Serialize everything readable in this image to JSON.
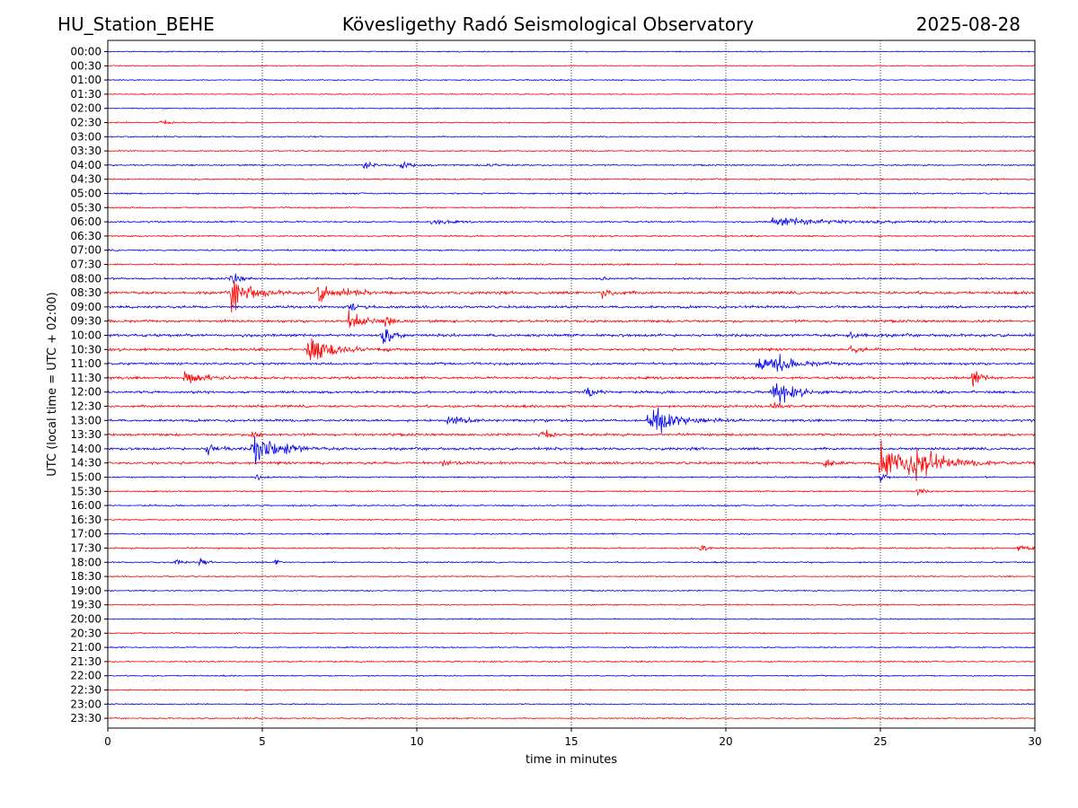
{
  "header": {
    "station": "HU_Station_BEHE",
    "observatory": "Kövesligethy Radó Seismological Observatory",
    "date": "2025-08-28"
  },
  "chart_data": {
    "type": "line",
    "chart_kind": "helicorder",
    "xlabel": "time in minutes",
    "ylabel": "UTC (local time = UTC + 02:00)",
    "xlim": [
      0,
      30
    ],
    "x_ticks": [
      0,
      5,
      10,
      15,
      20,
      25,
      30
    ],
    "grid": "vertical dotted at x ticks",
    "colors": {
      "blue": "#0000ee",
      "red": "#ff0000"
    },
    "color_pattern": "alternating blue / red, starting with blue at 00:00",
    "row_labels": [
      "00:00",
      "00:30",
      "01:00",
      "01:30",
      "02:00",
      "02:30",
      "03:00",
      "03:30",
      "04:00",
      "04:30",
      "05:00",
      "05:30",
      "06:00",
      "06:30",
      "07:00",
      "07:30",
      "08:00",
      "08:30",
      "09:00",
      "09:30",
      "10:00",
      "10:30",
      "11:00",
      "11:30",
      "12:00",
      "12:30",
      "13:00",
      "13:30",
      "14:00",
      "14:30",
      "15:00",
      "15:30",
      "16:00",
      "16:30",
      "17:00",
      "17:30",
      "18:00",
      "18:30",
      "19:00",
      "19:30",
      "20:00",
      "20:30",
      "21:00",
      "21:30",
      "22:00",
      "22:30",
      "23:00",
      "23:30"
    ],
    "row_noise": [
      0.22,
      0.2,
      0.22,
      0.2,
      0.22,
      0.25,
      0.25,
      0.25,
      0.28,
      0.28,
      0.3,
      0.3,
      0.32,
      0.3,
      0.32,
      0.32,
      0.35,
      0.55,
      0.5,
      0.5,
      0.55,
      0.5,
      0.45,
      0.5,
      0.5,
      0.48,
      0.48,
      0.5,
      0.5,
      0.5,
      0.3,
      0.28,
      0.28,
      0.28,
      0.28,
      0.3,
      0.28,
      0.25,
      0.25,
      0.25,
      0.25,
      0.25,
      0.25,
      0.28,
      0.25,
      0.25,
      0.25,
      0.25
    ],
    "events": [
      {
        "row": 5,
        "minute": 1.7,
        "amplitude": 0.6,
        "duration": 0.5
      },
      {
        "row": 8,
        "minute": 8.3,
        "amplitude": 0.9,
        "duration": 0.6
      },
      {
        "row": 8,
        "minute": 9.5,
        "amplitude": 0.5,
        "duration": 1.0
      },
      {
        "row": 8,
        "minute": 12.2,
        "amplitude": 0.35,
        "duration": 1.0
      },
      {
        "row": 12,
        "minute": 10.5,
        "amplitude": 0.5,
        "duration": 1.0
      },
      {
        "row": 12,
        "minute": 21.5,
        "amplitude": 0.8,
        "duration": 4.5
      },
      {
        "row": 16,
        "minute": 4.0,
        "amplitude": 1.5,
        "duration": 0.5
      },
      {
        "row": 16,
        "minute": 16.0,
        "amplitude": 0.5,
        "duration": 0.4
      },
      {
        "row": 17,
        "minute": 4.0,
        "amplitude": 3.5,
        "duration": 1.2
      },
      {
        "row": 17,
        "minute": 6.8,
        "amplitude": 1.6,
        "duration": 1.5
      },
      {
        "row": 17,
        "minute": 16.0,
        "amplitude": 1.0,
        "duration": 0.8
      },
      {
        "row": 18,
        "minute": 7.8,
        "amplitude": 1.0,
        "duration": 0.5
      },
      {
        "row": 19,
        "minute": 7.8,
        "amplitude": 2.0,
        "duration": 0.8
      },
      {
        "row": 19,
        "minute": 9.0,
        "amplitude": 1.5,
        "duration": 0.5
      },
      {
        "row": 20,
        "minute": 8.9,
        "amplitude": 2.0,
        "duration": 0.6
      },
      {
        "row": 20,
        "minute": 24.0,
        "amplitude": 0.6,
        "duration": 1.0
      },
      {
        "row": 21,
        "minute": 6.5,
        "amplitude": 2.6,
        "duration": 1.8
      },
      {
        "row": 21,
        "minute": 24.0,
        "amplitude": 0.6,
        "duration": 0.8
      },
      {
        "row": 22,
        "minute": 21.0,
        "amplitude": 1.2,
        "duration": 2.5
      },
      {
        "row": 22,
        "minute": 21.6,
        "amplitude": 1.6,
        "duration": 0.5
      },
      {
        "row": 23,
        "minute": 2.5,
        "amplitude": 1.0,
        "duration": 1.5
      },
      {
        "row": 23,
        "minute": 28.0,
        "amplitude": 1.8,
        "duration": 0.5
      },
      {
        "row": 24,
        "minute": 15.5,
        "amplitude": 1.2,
        "duration": 0.6
      },
      {
        "row": 24,
        "minute": 21.5,
        "amplitude": 2.6,
        "duration": 1.2
      },
      {
        "row": 25,
        "minute": 21.5,
        "amplitude": 1.0,
        "duration": 0.5
      },
      {
        "row": 26,
        "minute": 17.5,
        "amplitude": 3.0,
        "duration": 1.6
      },
      {
        "row": 26,
        "minute": 11.0,
        "amplitude": 0.7,
        "duration": 1.5
      },
      {
        "row": 27,
        "minute": 14.0,
        "amplitude": 1.2,
        "duration": 0.6
      },
      {
        "row": 27,
        "minute": 4.7,
        "amplitude": 2.0,
        "duration": 0.3
      },
      {
        "row": 28,
        "minute": 4.7,
        "amplitude": 3.0,
        "duration": 1.5
      },
      {
        "row": 28,
        "minute": 3.2,
        "amplitude": 1.2,
        "duration": 0.8
      },
      {
        "row": 28,
        "minute": 5.8,
        "amplitude": 1.0,
        "duration": 0.4
      },
      {
        "row": 29,
        "minute": 25.0,
        "amplitude": 3.2,
        "duration": 2.8
      },
      {
        "row": 29,
        "minute": 26.2,
        "amplitude": 3.0,
        "duration": 0.8
      },
      {
        "row": 29,
        "minute": 23.2,
        "amplitude": 1.4,
        "duration": 0.5
      },
      {
        "row": 29,
        "minute": 10.8,
        "amplitude": 0.8,
        "duration": 0.6
      },
      {
        "row": 30,
        "minute": 4.8,
        "amplitude": 0.9,
        "duration": 0.3
      },
      {
        "row": 30,
        "minute": 25.0,
        "amplitude": 1.5,
        "duration": 0.3
      },
      {
        "row": 31,
        "minute": 26.2,
        "amplitude": 1.2,
        "duration": 0.3
      },
      {
        "row": 35,
        "minute": 19.2,
        "amplitude": 1.0,
        "duration": 0.3
      },
      {
        "row": 35,
        "minute": 29.5,
        "amplitude": 0.7,
        "duration": 1.0
      },
      {
        "row": 36,
        "minute": 2.2,
        "amplitude": 0.6,
        "duration": 0.4
      },
      {
        "row": 36,
        "minute": 3.0,
        "amplitude": 0.6,
        "duration": 0.4
      },
      {
        "row": 36,
        "minute": 5.4,
        "amplitude": 0.7,
        "duration": 0.3
      }
    ]
  }
}
